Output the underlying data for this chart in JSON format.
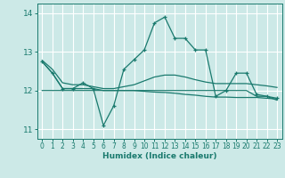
{
  "xlabel": "Humidex (Indice chaleur)",
  "ylabel": "",
  "xlim": [
    -0.5,
    23.5
  ],
  "ylim": [
    10.75,
    14.25
  ],
  "yticks": [
    11,
    12,
    13,
    14
  ],
  "xticks": [
    0,
    1,
    2,
    3,
    4,
    5,
    6,
    7,
    8,
    9,
    10,
    11,
    12,
    13,
    14,
    15,
    16,
    17,
    18,
    19,
    20,
    21,
    22,
    23
  ],
  "bg_color": "#cce9e7",
  "line_color": "#1a7a6e",
  "grid_color": "#ffffff",
  "lines": [
    {
      "x": [
        0,
        1,
        2,
        3,
        4,
        5,
        6,
        7,
        8,
        9,
        10,
        11,
        12,
        13,
        14,
        15,
        16,
        17,
        18,
        19,
        20,
        21,
        22,
        23
      ],
      "y": [
        12.75,
        12.45,
        12.05,
        12.05,
        12.2,
        12.05,
        11.1,
        11.6,
        12.55,
        12.8,
        13.05,
        13.75,
        13.9,
        13.35,
        13.35,
        13.05,
        13.05,
        11.85,
        12.0,
        12.45,
        12.45,
        11.9,
        11.85,
        11.8
      ],
      "marker": "+"
    },
    {
      "x": [
        0,
        1,
        2,
        3,
        4,
        5,
        6,
        7,
        8,
        9,
        10,
        11,
        12,
        13,
        14,
        15,
        16,
        17,
        18,
        19,
        20,
        21,
        22,
        23
      ],
      "y": [
        12.78,
        12.55,
        12.2,
        12.15,
        12.15,
        12.1,
        12.05,
        12.05,
        12.1,
        12.15,
        12.25,
        12.35,
        12.4,
        12.4,
        12.35,
        12.28,
        12.22,
        12.18,
        12.18,
        12.18,
        12.18,
        12.15,
        12.12,
        12.08
      ],
      "marker": null
    },
    {
      "x": [
        0,
        1,
        2,
        3,
        4,
        5,
        6,
        7,
        8,
        9,
        10,
        11,
        12,
        13,
        14,
        15,
        16,
        17,
        18,
        19,
        20,
        21,
        22,
        23
      ],
      "y": [
        12.0,
        12.0,
        12.0,
        12.0,
        12.0,
        12.0,
        12.0,
        12.0,
        12.0,
        12.0,
        11.98,
        11.96,
        11.95,
        11.93,
        11.9,
        11.88,
        11.85,
        11.83,
        11.83,
        11.82,
        11.82,
        11.82,
        11.8,
        11.78
      ],
      "marker": null
    },
    {
      "x": [
        0,
        1,
        2,
        3,
        4,
        5,
        6,
        7,
        8,
        9,
        10,
        11,
        12,
        13,
        14,
        15,
        16,
        17,
        18,
        19,
        20,
        21,
        22,
        23
      ],
      "y": [
        12.75,
        12.45,
        12.05,
        12.05,
        12.05,
        12.05,
        12.0,
        12.0,
        12.0,
        12.0,
        12.0,
        12.0,
        12.0,
        12.0,
        12.0,
        12.0,
        12.0,
        12.0,
        12.0,
        12.0,
        12.0,
        11.85,
        11.85,
        11.75
      ],
      "marker": null
    }
  ]
}
